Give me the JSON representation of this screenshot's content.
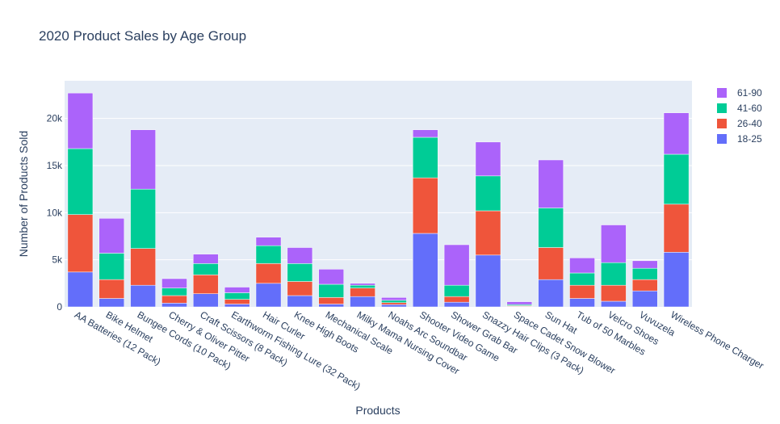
{
  "chart_data": {
    "type": "bar",
    "stacked": true,
    "title": "2020 Product Sales by Age Group",
    "xlabel": "Products",
    "ylabel": "Number of Products Sold",
    "ylim": [
      0,
      24000
    ],
    "yticks": [
      0,
      5000,
      10000,
      15000,
      20000
    ],
    "ytick_labels": [
      "0",
      "5k",
      "10k",
      "15k",
      "20k"
    ],
    "grid": true,
    "legend_position": "top-right",
    "categories": [
      "AA Batteries (12 Pack)",
      "Bike Helmet",
      "Bungee Cords (10 Pack)",
      "Cherry & Oliver Pitter",
      "Craft Scissors (8 Pack)",
      "Earthworm Fishing Lure (32 Pack)",
      "Hair Curler",
      "Knee High Boots",
      "Mechanical Scale",
      "Milky Mama Nursing Cover",
      "Noahs Arc Soundbar",
      "Shooter Video Game",
      "Shower Grab Bar",
      "Snazzy Hair Clips (3 Pack)",
      "Space Cadet Snow Blower",
      "Sun Hat",
      "Tub of 50 Marbles",
      "Velcro Shoes",
      "Vuvuzela",
      "Wireless Phone Charger"
    ],
    "series": [
      {
        "name": "18-25",
        "color": "#636efa",
        "values": [
          3700,
          900,
          2300,
          400,
          1400,
          300,
          2500,
          1200,
          300,
          1100,
          250,
          7800,
          500,
          5500,
          50,
          2900,
          900,
          600,
          1700,
          5800
        ]
      },
      {
        "name": "26-40",
        "color": "#ef553b",
        "values": [
          6100,
          2000,
          3900,
          800,
          2000,
          500,
          2100,
          1500,
          700,
          900,
          200,
          5900,
          600,
          4700,
          80,
          3400,
          1400,
          1700,
          1200,
          5100
        ]
      },
      {
        "name": "41-60",
        "color": "#00cc96",
        "values": [
          7000,
          2800,
          6300,
          800,
          1200,
          700,
          1900,
          1900,
          1400,
          300,
          250,
          4300,
          1200,
          3700,
          120,
          4200,
          1300,
          2400,
          1200,
          5300
        ]
      },
      {
        "name": "61-90",
        "color": "#ab63fa",
        "values": [
          5900,
          3700,
          6300,
          1000,
          1000,
          600,
          900,
          1700,
          1600,
          200,
          300,
          800,
          4300,
          3600,
          300,
          5100,
          1600,
          4000,
          800,
          4400
        ]
      }
    ]
  }
}
